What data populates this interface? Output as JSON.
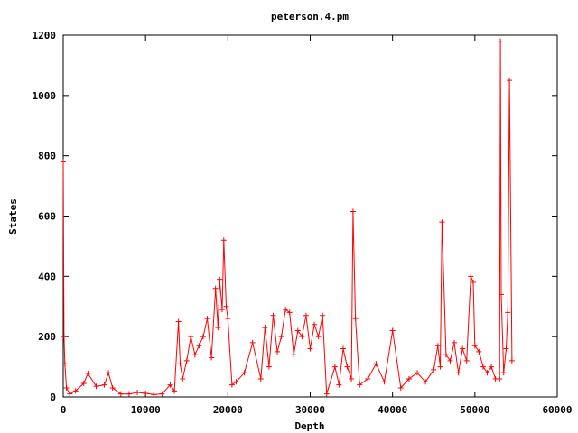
{
  "chart_data": {
    "type": "line",
    "title": "peterson.4.pm",
    "xlabel": "Depth",
    "ylabel": "States",
    "xlim": [
      0,
      60000
    ],
    "ylim": [
      0,
      1200
    ],
    "x_ticks": [
      "0",
      "10000",
      "20000",
      "30000",
      "40000",
      "50000",
      "60000"
    ],
    "y_ticks": [
      "0",
      "200",
      "400",
      "600",
      "800",
      "1000",
      "1200"
    ],
    "grid": false,
    "legend": "none",
    "line_color": "#ff0000",
    "marker": "plus",
    "series": [
      {
        "x": [
          0,
          100,
          200,
          400,
          800,
          1500,
          2500,
          3000,
          4000,
          5000,
          5500,
          6000,
          7000,
          8000,
          9000,
          10000,
          11000,
          12000,
          13000,
          13500,
          14000,
          14200,
          14500,
          15000,
          15500,
          16000,
          16500,
          17000,
          17500,
          18000,
          18500,
          18800,
          19000,
          19300,
          19500,
          19800,
          20000,
          20500,
          21000,
          22000,
          23000,
          24000,
          24500,
          25000,
          25500,
          26000,
          26500,
          27000,
          27500,
          28000,
          28500,
          29000,
          29500,
          30000,
          30500,
          31000,
          31500,
          32000,
          33000,
          33500,
          34000,
          34500,
          35000,
          35200,
          35500,
          36000,
          37000,
          38000,
          39000,
          40000,
          41000,
          42000,
          43000,
          44000,
          45000,
          45500,
          45800,
          46000,
          46500,
          47000,
          47500,
          48000,
          48500,
          49000,
          49500,
          49800,
          50000,
          50500,
          51000,
          51500,
          52000,
          52500,
          53000,
          53100,
          53200,
          53500,
          53800,
          54000,
          54200,
          54500
        ],
        "y": [
          780,
          200,
          110,
          30,
          10,
          20,
          45,
          78,
          35,
          40,
          80,
          30,
          10,
          10,
          15,
          12,
          8,
          10,
          40,
          20,
          250,
          110,
          60,
          120,
          200,
          140,
          170,
          200,
          260,
          130,
          360,
          230,
          390,
          290,
          520,
          300,
          260,
          40,
          50,
          80,
          180,
          60,
          230,
          100,
          270,
          150,
          200,
          290,
          280,
          140,
          220,
          200,
          270,
          160,
          240,
          200,
          270,
          10,
          100,
          40,
          160,
          100,
          60,
          615,
          260,
          40,
          60,
          110,
          50,
          220,
          30,
          60,
          80,
          50,
          90,
          170,
          100,
          580,
          140,
          120,
          180,
          80,
          160,
          120,
          400,
          380,
          170,
          150,
          100,
          80,
          100,
          60,
          60,
          1180,
          340,
          80,
          160,
          280,
          1050,
          120
        ]
      }
    ]
  }
}
